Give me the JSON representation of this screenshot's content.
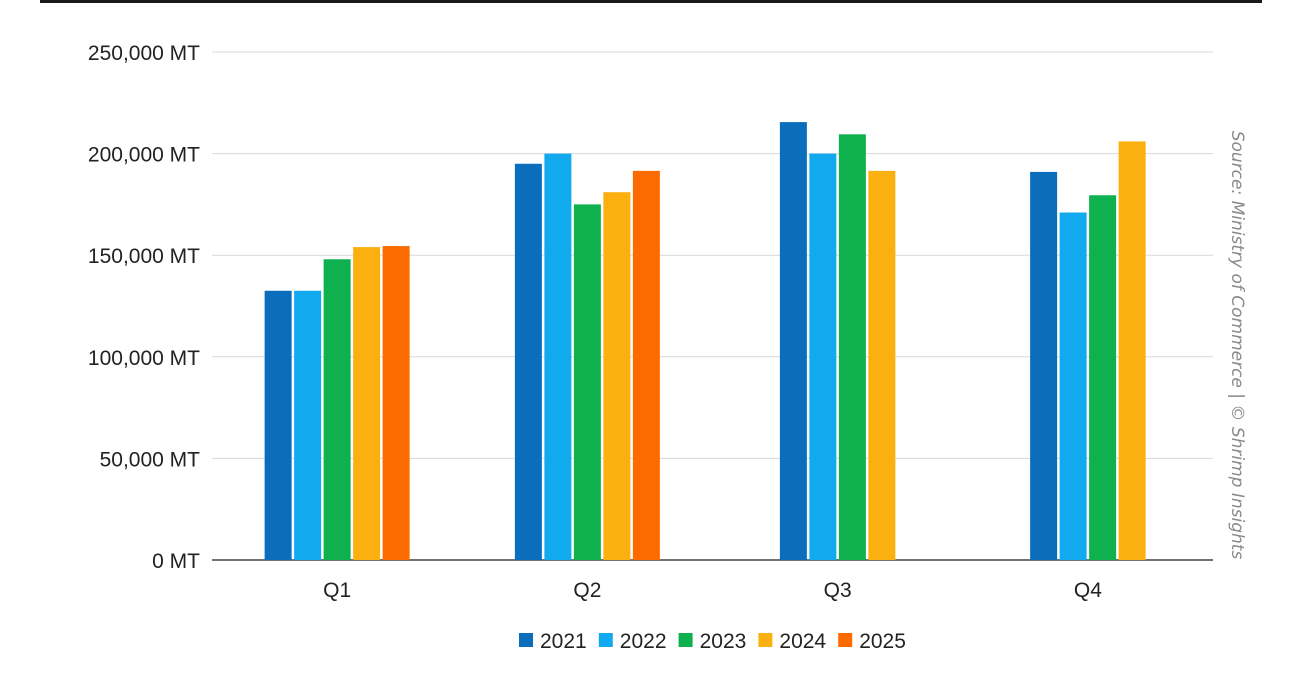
{
  "chart_data": {
    "type": "bar",
    "categories": [
      "Q1",
      "Q2",
      "Q3",
      "Q4"
    ],
    "series": [
      {
        "name": "2021",
        "color": "#0a6ebd",
        "values": [
          132500,
          195000,
          215500,
          191000
        ]
      },
      {
        "name": "2022",
        "color": "#11aaee",
        "values": [
          132500,
          200000,
          200000,
          171000
        ]
      },
      {
        "name": "2023",
        "color": "#0fb04e",
        "values": [
          148000,
          175000,
          209500,
          179500
        ]
      },
      {
        "name": "2024",
        "color": "#fbb00f",
        "values": [
          154000,
          181000,
          191500,
          206000
        ]
      },
      {
        "name": "2025",
        "color": "#fd6a00",
        "values": [
          154500,
          191500,
          null,
          null
        ]
      }
    ],
    "yticks": [
      "0 MT",
      "50,000 MT",
      "100,000 MT",
      "150,000 MT",
      "200,000 MT",
      "250,000 MT"
    ],
    "ylim": [
      0,
      250000
    ],
    "grid": true,
    "legend_position": "bottom",
    "title": "",
    "xlabel": "",
    "ylabel": "",
    "source": "Source: Ministry of Commerce | © Shrimp Insights"
  }
}
